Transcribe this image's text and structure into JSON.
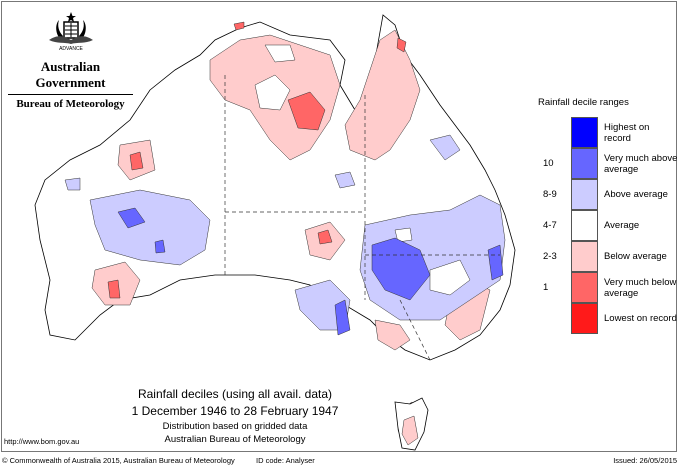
{
  "header": {
    "government": "Australian Government",
    "bureau": "Bureau of Meteorology"
  },
  "legend": {
    "title": "Rainfall decile ranges",
    "items": [
      {
        "decile": "",
        "label": "Highest on record",
        "color": "#0000ff"
      },
      {
        "decile": "10",
        "label": "Very much above average",
        "color": "#6666ff"
      },
      {
        "decile": "8-9",
        "label": "Above average",
        "color": "#ccccff"
      },
      {
        "decile": "4-7",
        "label": "Average",
        "color": "#ffffff"
      },
      {
        "decile": "2-3",
        "label": "Below average",
        "color": "#ffcccc"
      },
      {
        "decile": "1",
        "label": "Very much below average",
        "color": "#ff6666"
      },
      {
        "decile": "",
        "label": "Lowest on record",
        "color": "#ff1a1a"
      }
    ]
  },
  "caption": {
    "title": "Rainfall deciles (using all avail. data)",
    "period": "1 December 1946 to 28 February 1947",
    "basis": "Distribution based on gridded data",
    "source": "Australian Bureau of Meteorology"
  },
  "url": "http://www.bom.gov.au",
  "footer": {
    "copyright": "© Commonwealth of Australia 2015, Australian Bureau of Meteorology",
    "id_code": "ID code: Analyser",
    "issued": "Issued: 26/05/2015"
  }
}
